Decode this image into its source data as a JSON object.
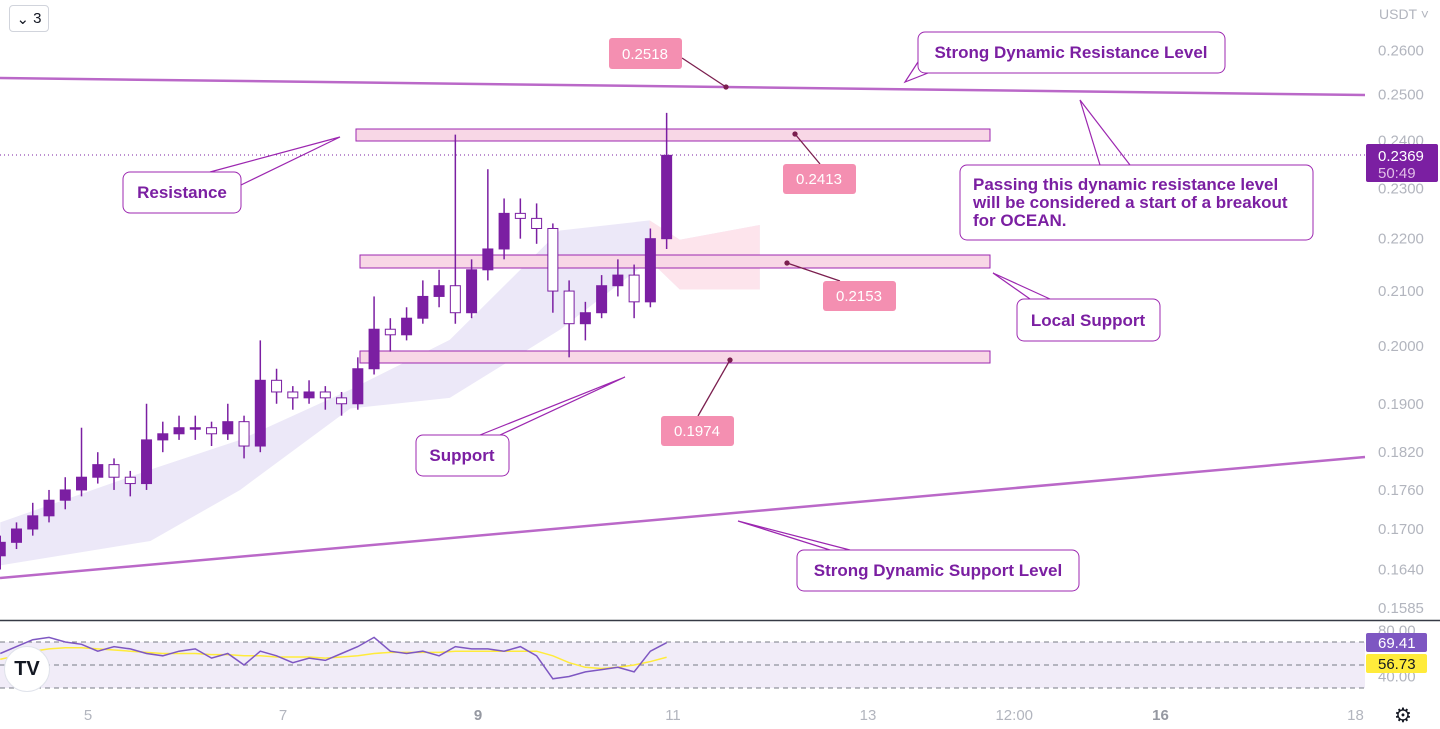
{
  "toolbar": {
    "interval_label": "3",
    "currency_label": "USDT"
  },
  "chart_data": {
    "type": "candlestick",
    "yscale": "log",
    "ylim": [
      0.155,
      0.266
    ],
    "xlim_days": [
      4.1,
      18.1
    ],
    "price_ticks": [
      "0.2600",
      "0.2500",
      "0.2400",
      "0.2300",
      "0.2200",
      "0.2100",
      "0.2000",
      "0.1900",
      "0.1820",
      "0.1760",
      "0.1700",
      "0.1640",
      "0.1585"
    ],
    "time_ticks": [
      {
        "label": "5",
        "day": 5,
        "bold": false
      },
      {
        "label": "7",
        "day": 7,
        "bold": false
      },
      {
        "label": "9",
        "day": 9,
        "bold": true
      },
      {
        "label": "11",
        "day": 11,
        "bold": false
      },
      {
        "label": "13",
        "day": 13,
        "bold": false
      },
      {
        "label": "12:00",
        "day": 14.5,
        "bold": false
      },
      {
        "label": "16",
        "day": 16,
        "bold": true
      },
      {
        "label": "18",
        "day": 18,
        "bold": false
      }
    ],
    "candle_start_day": 4.1,
    "candle_step_days": 0.1667,
    "ohlc": [
      [
        0.166,
        0.169,
        0.164,
        0.168
      ],
      [
        0.168,
        0.171,
        0.167,
        0.17
      ],
      [
        0.17,
        0.174,
        0.169,
        0.172
      ],
      [
        0.172,
        0.176,
        0.171,
        0.1744
      ],
      [
        0.1744,
        0.178,
        0.173,
        0.176
      ],
      [
        0.176,
        0.186,
        0.175,
        0.178
      ],
      [
        0.178,
        0.182,
        0.177,
        0.18
      ],
      [
        0.18,
        0.181,
        0.176,
        0.178
      ],
      [
        0.178,
        0.179,
        0.175,
        0.177
      ],
      [
        0.177,
        0.19,
        0.176,
        0.184
      ],
      [
        0.184,
        0.187,
        0.182,
        0.185
      ],
      [
        0.185,
        0.188,
        0.184,
        0.186
      ],
      [
        0.186,
        0.188,
        0.184,
        0.186
      ],
      [
        0.186,
        0.187,
        0.183,
        0.185
      ],
      [
        0.185,
        0.19,
        0.184,
        0.187
      ],
      [
        0.187,
        0.188,
        0.181,
        0.183
      ],
      [
        0.183,
        0.201,
        0.182,
        0.194
      ],
      [
        0.194,
        0.196,
        0.19,
        0.192
      ],
      [
        0.192,
        0.193,
        0.189,
        0.191
      ],
      [
        0.191,
        0.194,
        0.19,
        0.192
      ],
      [
        0.192,
        0.193,
        0.189,
        0.191
      ],
      [
        0.191,
        0.192,
        0.188,
        0.19
      ],
      [
        0.19,
        0.198,
        0.189,
        0.196
      ],
      [
        0.196,
        0.209,
        0.195,
        0.203
      ],
      [
        0.203,
        0.205,
        0.199,
        0.202
      ],
      [
        0.202,
        0.207,
        0.201,
        0.205
      ],
      [
        0.205,
        0.212,
        0.204,
        0.209
      ],
      [
        0.209,
        0.214,
        0.207,
        0.211
      ],
      [
        0.211,
        0.2413,
        0.204,
        0.206
      ],
      [
        0.206,
        0.216,
        0.205,
        0.214
      ],
      [
        0.214,
        0.234,
        0.212,
        0.218
      ],
      [
        0.218,
        0.228,
        0.216,
        0.225
      ],
      [
        0.225,
        0.228,
        0.22,
        0.224
      ],
      [
        0.224,
        0.227,
        0.219,
        0.222
      ],
      [
        0.222,
        0.223,
        0.206,
        0.21
      ],
      [
        0.21,
        0.212,
        0.198,
        0.204
      ],
      [
        0.204,
        0.208,
        0.201,
        0.206
      ],
      [
        0.206,
        0.213,
        0.205,
        0.211
      ],
      [
        0.211,
        0.216,
        0.209,
        0.213
      ],
      [
        0.213,
        0.215,
        0.205,
        0.208
      ],
      [
        0.208,
        0.222,
        0.207,
        0.22
      ],
      [
        0.22,
        0.246,
        0.218,
        0.2369
      ]
    ],
    "cloud": [
      {
        "day": 4.1,
        "a": 0.171,
        "b": 0.1646
      },
      {
        "day": 5.64,
        "a": 0.1792,
        "b": 0.1682
      },
      {
        "day": 6.56,
        "a": 0.184,
        "b": 0.176
      },
      {
        "day": 7.69,
        "a": 0.1924,
        "b": 0.1892
      },
      {
        "day": 8.71,
        "a": 0.2011,
        "b": 0.191
      },
      {
        "day": 9.84,
        "a": 0.2216,
        "b": 0.2029
      },
      {
        "day": 10.76,
        "a": 0.2236,
        "b": 0.2158
      },
      {
        "day": 11.07,
        "a": 0.2198,
        "b": 0.2103
      },
      {
        "day": 11.89,
        "a": 0.2227,
        "b": 0.2103
      }
    ],
    "last_price": "0.2369",
    "countdown": "50:49",
    "rsi": {
      "ticks": [
        "80.00",
        "40.00"
      ],
      "levels": [
        70,
        50,
        30
      ],
      "values": [
        60,
        66,
        72,
        74,
        70,
        68,
        62,
        66,
        64,
        60,
        58,
        62,
        64,
        56,
        60,
        50,
        62,
        58,
        52,
        56,
        54,
        60,
        66,
        74,
        62,
        60,
        62,
        58,
        66,
        64,
        64,
        62,
        66,
        58,
        38,
        40,
        44,
        46,
        48,
        44,
        62,
        69.41
      ],
      "ma": [
        55,
        58,
        62,
        64,
        65,
        65,
        64,
        63,
        62,
        61,
        60,
        60,
        60,
        59,
        59,
        58,
        58,
        57,
        57,
        57,
        56,
        57,
        58,
        60,
        61,
        61,
        61,
        61,
        62,
        62,
        62,
        62,
        62,
        62,
        58,
        52,
        48,
        47,
        48,
        50,
        53,
        56.73
      ],
      "value_label": "69.41",
      "ma_label": "56.73"
    },
    "colors": {
      "candle": "#7b1fa2",
      "cloud": "#ece8f8",
      "cloud_bear": "#fde4ec",
      "trendline": "#ba68c8",
      "zone": "#f8d7e6",
      "callout_border": "#9c27b0",
      "price_tag": "#f48fb1",
      "rsi": "#7e57c2",
      "rsi_ma": "#ffeb3b"
    },
    "annotations": {
      "resistance_level_price": "0.2518",
      "resistance_zone_price": "0.2413",
      "local_support_price": "0.2153",
      "support_zone_price": "0.1974",
      "strong_resistance_label": "Strong Dynamic Resistance Level",
      "resistance_label": "Resistance",
      "breakout_note": [
        "Passing this dynamic resistance level",
        "will be considered a start of a breakout",
        "for OCEAN."
      ],
      "local_support_label": "Local Support",
      "support_label": "Support",
      "strong_support_label": "Strong Dynamic Support Level"
    }
  }
}
